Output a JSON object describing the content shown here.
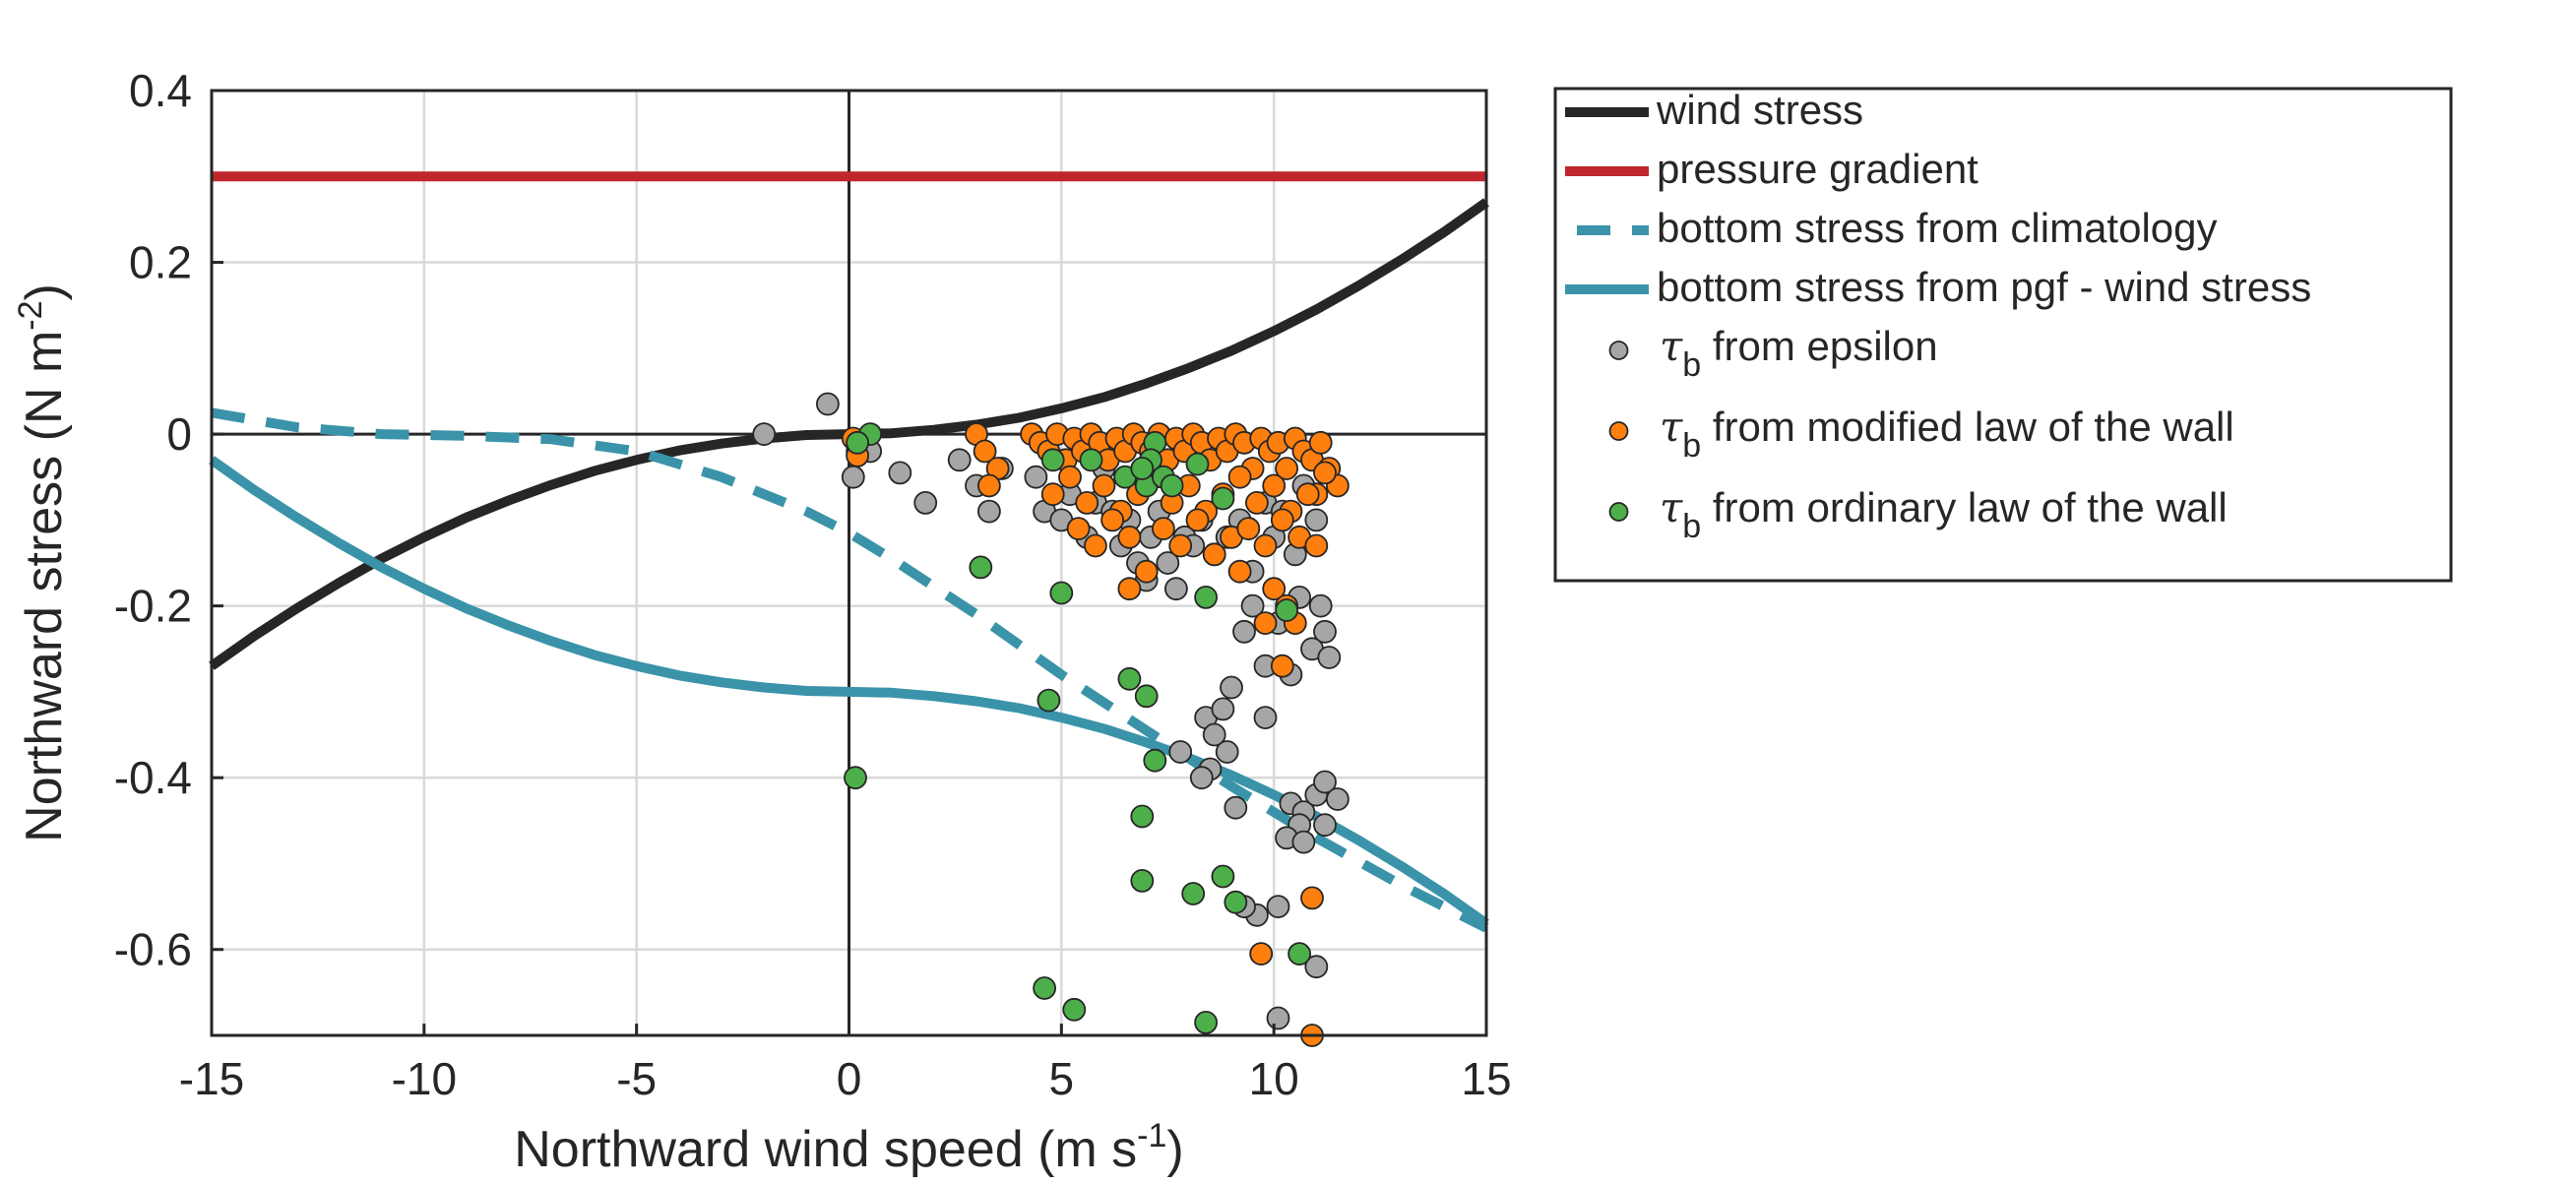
{
  "chart_data": {
    "type": "scatter",
    "xlabel": "Northward wind speed (m s",
    "xlabel_sup": "-1",
    "xlabel_end": ")",
    "ylabel": "Northward stress (N m",
    "ylabel_sup": "-2",
    "ylabel_end": ")",
    "xlim": [
      -15,
      15
    ],
    "ylim": [
      -0.7,
      0.4
    ],
    "xticks": [
      -15,
      -10,
      -5,
      0,
      5,
      10,
      15
    ],
    "xtick_labels": [
      "-15",
      "-10",
      "-5",
      "0",
      "5",
      "10",
      "15"
    ],
    "yticks": [
      -0.6,
      -0.4,
      -0.2,
      0,
      0.2,
      0.4
    ],
    "ytick_labels": [
      "-0.6",
      "-0.4",
      "-0.2",
      "0",
      "0.2",
      "0.4"
    ],
    "grid": true,
    "legend_position": "outside-right",
    "lines": [
      {
        "name": "wind stress",
        "color": "#262626",
        "dash": "solid",
        "x": [
          -15,
          -14,
          -13,
          -12,
          -11,
          -10,
          -9,
          -8,
          -7,
          -6,
          -5,
          -4,
          -3,
          -2,
          -1,
          0,
          1,
          2,
          3,
          4,
          5,
          6,
          7,
          8,
          9,
          10,
          11,
          12,
          13,
          14,
          15
        ],
        "y": [
          -0.27,
          -0.235,
          -0.203,
          -0.173,
          -0.145,
          -0.12,
          -0.097,
          -0.077,
          -0.059,
          -0.043,
          -0.03,
          -0.019,
          -0.011,
          -0.005,
          -0.001,
          0,
          0.001,
          0.005,
          0.011,
          0.019,
          0.03,
          0.043,
          0.059,
          0.077,
          0.097,
          0.12,
          0.145,
          0.173,
          0.203,
          0.235,
          0.27
        ]
      },
      {
        "name": "pressure gradient",
        "color": "#c0272d",
        "dash": "solid",
        "x": [
          -15,
          15
        ],
        "y": [
          0.3,
          0.3
        ]
      },
      {
        "name": "bottom stress from climatology",
        "color": "#3a93a9",
        "dash": "dashed",
        "x": [
          -15,
          -13,
          -11,
          -9,
          -7,
          -5,
          -3,
          -1,
          0,
          1,
          3,
          5,
          7,
          9,
          11,
          13,
          15
        ],
        "y": [
          0.025,
          0.008,
          0,
          -0.002,
          -0.006,
          -0.02,
          -0.05,
          -0.09,
          -0.115,
          -0.145,
          -0.21,
          -0.28,
          -0.345,
          -0.41,
          -0.47,
          -0.525,
          -0.575
        ]
      },
      {
        "name": "bottom stress from pgf - wind stress",
        "color": "#3a93a9",
        "dash": "solid",
        "x": [
          -15,
          -14,
          -13,
          -12,
          -11,
          -10,
          -9,
          -8,
          -7,
          -6,
          -5,
          -4,
          -3,
          -2,
          -1,
          0,
          1,
          2,
          3,
          4,
          5,
          6,
          7,
          8,
          9,
          10,
          11,
          12,
          13,
          14,
          15
        ],
        "y": [
          -0.03,
          -0.065,
          -0.097,
          -0.127,
          -0.155,
          -0.18,
          -0.203,
          -0.223,
          -0.241,
          -0.257,
          -0.27,
          -0.281,
          -0.289,
          -0.295,
          -0.299,
          -0.3,
          -0.301,
          -0.305,
          -0.311,
          -0.319,
          -0.33,
          -0.343,
          -0.359,
          -0.377,
          -0.397,
          -0.42,
          -0.445,
          -0.473,
          -0.503,
          -0.535,
          -0.57
        ]
      }
    ],
    "scatter": [
      {
        "name": "from epsilon",
        "symbol": "τ",
        "symbol_sub": "b",
        "color": "#a6a6a6",
        "points": [
          [
            -0.5,
            0.035
          ],
          [
            -2,
            0
          ],
          [
            0.2,
            -0.02
          ],
          [
            0.1,
            -0.05
          ],
          [
            0.5,
            -0.02
          ],
          [
            1.2,
            -0.045
          ],
          [
            1.8,
            -0.08
          ],
          [
            2.6,
            -0.03
          ],
          [
            3,
            -0.06
          ],
          [
            3.3,
            -0.09
          ],
          [
            3.6,
            -0.04
          ],
          [
            4.4,
            -0.05
          ],
          [
            4.6,
            -0.09
          ],
          [
            5,
            -0.1
          ],
          [
            5.2,
            -0.07
          ],
          [
            5.6,
            -0.12
          ],
          [
            5.8,
            -0.08
          ],
          [
            6,
            -0.04
          ],
          [
            6.2,
            -0.09
          ],
          [
            6.4,
            -0.13
          ],
          [
            6.6,
            -0.1
          ],
          [
            6.8,
            -0.15
          ],
          [
            7,
            -0.17
          ],
          [
            7.1,
            -0.12
          ],
          [
            7.3,
            -0.09
          ],
          [
            7.5,
            -0.15
          ],
          [
            7.7,
            -0.18
          ],
          [
            7.9,
            -0.12
          ],
          [
            8.1,
            -0.13
          ],
          [
            8.3,
            -0.1
          ],
          [
            8.6,
            -0.14
          ],
          [
            8.9,
            -0.12
          ],
          [
            9.2,
            -0.1
          ],
          [
            9.5,
            -0.16
          ],
          [
            9.8,
            -0.08
          ],
          [
            10,
            -0.12
          ],
          [
            10.2,
            -0.09
          ],
          [
            10.5,
            -0.14
          ],
          [
            10.7,
            -0.06
          ],
          [
            11,
            -0.1
          ],
          [
            9.3,
            -0.23
          ],
          [
            9.5,
            -0.2
          ],
          [
            9.8,
            -0.27
          ],
          [
            10.1,
            -0.22
          ],
          [
            10.4,
            -0.28
          ],
          [
            10.6,
            -0.19
          ],
          [
            10.9,
            -0.25
          ],
          [
            11.2,
            -0.23
          ],
          [
            11.1,
            -0.2
          ],
          [
            11.3,
            -0.26
          ],
          [
            9.8,
            -0.33
          ],
          [
            8.4,
            -0.33
          ],
          [
            8.6,
            -0.35
          ],
          [
            8.8,
            -0.32
          ],
          [
            9.0,
            -0.295
          ],
          [
            8.9,
            -0.37
          ],
          [
            7.8,
            -0.37
          ],
          [
            8.5,
            -0.39
          ],
          [
            8.3,
            -0.4
          ],
          [
            9.1,
            -0.435
          ],
          [
            10.4,
            -0.43
          ],
          [
            10.7,
            -0.44
          ],
          [
            11.0,
            -0.42
          ],
          [
            11.2,
            -0.405
          ],
          [
            11.5,
            -0.425
          ],
          [
            10.6,
            -0.455
          ],
          [
            11.2,
            -0.455
          ],
          [
            10.3,
            -0.47
          ],
          [
            10.7,
            -0.475
          ],
          [
            9.6,
            -0.56
          ],
          [
            10.1,
            -0.55
          ],
          [
            9.3,
            -0.55
          ],
          [
            11.0,
            -0.62
          ],
          [
            10.1,
            -0.68
          ]
        ]
      },
      {
        "name": "from modified law of the wall",
        "symbol": "τ",
        "symbol_sub": "b",
        "color": "#ff7f0e",
        "points": [
          [
            0.1,
            -0.005
          ],
          [
            0.2,
            -0.025
          ],
          [
            3,
            0
          ],
          [
            3.2,
            -0.02
          ],
          [
            3.5,
            -0.04
          ],
          [
            3.3,
            -0.06
          ],
          [
            4.3,
            0
          ],
          [
            4.5,
            -0.01
          ],
          [
            4.7,
            -0.02
          ],
          [
            4.9,
            0
          ],
          [
            5.1,
            -0.03
          ],
          [
            5.3,
            -0.005
          ],
          [
            5.5,
            -0.02
          ],
          [
            5.7,
            0
          ],
          [
            5.9,
            -0.01
          ],
          [
            6.1,
            -0.03
          ],
          [
            6.3,
            -0.005
          ],
          [
            6.5,
            -0.02
          ],
          [
            6.7,
            0
          ],
          [
            6.9,
            -0.01
          ],
          [
            7.1,
            -0.02
          ],
          [
            7.3,
            0
          ],
          [
            7.5,
            -0.03
          ],
          [
            7.7,
            -0.005
          ],
          [
            7.9,
            -0.02
          ],
          [
            8.1,
            0
          ],
          [
            8.3,
            -0.01
          ],
          [
            8.5,
            -0.03
          ],
          [
            8.7,
            -0.005
          ],
          [
            8.9,
            -0.02
          ],
          [
            9.1,
            0
          ],
          [
            9.3,
            -0.01
          ],
          [
            9.5,
            -0.04
          ],
          [
            9.7,
            -0.005
          ],
          [
            9.9,
            -0.02
          ],
          [
            10.1,
            -0.01
          ],
          [
            10.3,
            -0.04
          ],
          [
            10.5,
            -0.005
          ],
          [
            10.7,
            -0.02
          ],
          [
            10.9,
            -0.03
          ],
          [
            11.1,
            -0.01
          ],
          [
            11.3,
            -0.04
          ],
          [
            11.5,
            -0.06
          ],
          [
            11.0,
            -0.07
          ],
          [
            11.2,
            -0.045
          ],
          [
            4.8,
            -0.07
          ],
          [
            5.2,
            -0.05
          ],
          [
            5.6,
            -0.08
          ],
          [
            6.0,
            -0.06
          ],
          [
            6.4,
            -0.09
          ],
          [
            6.8,
            -0.07
          ],
          [
            7.2,
            -0.05
          ],
          [
            7.6,
            -0.08
          ],
          [
            8.0,
            -0.06
          ],
          [
            8.4,
            -0.09
          ],
          [
            8.8,
            -0.07
          ],
          [
            9.2,
            -0.05
          ],
          [
            9.6,
            -0.08
          ],
          [
            10.0,
            -0.06
          ],
          [
            10.4,
            -0.09
          ],
          [
            10.8,
            -0.07
          ],
          [
            5.4,
            -0.11
          ],
          [
            5.8,
            -0.13
          ],
          [
            6.2,
            -0.1
          ],
          [
            6.6,
            -0.12
          ],
          [
            7.0,
            -0.16
          ],
          [
            7.4,
            -0.11
          ],
          [
            7.8,
            -0.13
          ],
          [
            8.2,
            -0.1
          ],
          [
            8.6,
            -0.14
          ],
          [
            9.0,
            -0.12
          ],
          [
            9.4,
            -0.11
          ],
          [
            9.8,
            -0.13
          ],
          [
            10.2,
            -0.1
          ],
          [
            10.6,
            -0.12
          ],
          [
            11.0,
            -0.13
          ],
          [
            6.6,
            -0.18
          ],
          [
            9.2,
            -0.16
          ],
          [
            10.0,
            -0.18
          ],
          [
            10.3,
            -0.2
          ],
          [
            9.8,
            -0.22
          ],
          [
            10.5,
            -0.22
          ],
          [
            10.2,
            -0.27
          ],
          [
            10.9,
            -0.54
          ],
          [
            9.7,
            -0.605
          ],
          [
            10.9,
            -0.7
          ]
        ]
      },
      {
        "name": "from ordinary law of the wall",
        "symbol": "τ",
        "symbol_sub": "b",
        "color": "#4daf4a",
        "points": [
          [
            0.5,
            0
          ],
          [
            0.2,
            -0.01
          ],
          [
            0.15,
            -0.4
          ],
          [
            3.1,
            -0.155
          ],
          [
            5,
            -0.185
          ],
          [
            4.8,
            -0.03
          ],
          [
            5.7,
            -0.03
          ],
          [
            6.5,
            -0.05
          ],
          [
            7.0,
            -0.06
          ],
          [
            7.2,
            -0.01
          ],
          [
            7.1,
            -0.03
          ],
          [
            7.4,
            -0.05
          ],
          [
            6.9,
            -0.04
          ],
          [
            7.6,
            -0.06
          ],
          [
            8.2,
            -0.035
          ],
          [
            8.8,
            -0.075
          ],
          [
            8.4,
            -0.19
          ],
          [
            10.3,
            -0.205
          ],
          [
            4.7,
            -0.31
          ],
          [
            6.6,
            -0.285
          ],
          [
            7.0,
            -0.305
          ],
          [
            7.2,
            -0.38
          ],
          [
            6.9,
            -0.445
          ],
          [
            6.9,
            -0.52
          ],
          [
            8.1,
            -0.535
          ],
          [
            8.8,
            -0.515
          ],
          [
            9.1,
            -0.545
          ],
          [
            10.6,
            -0.605
          ],
          [
            4.6,
            -0.645
          ],
          [
            5.3,
            -0.67
          ],
          [
            8.4,
            -0.685
          ]
        ]
      }
    ]
  }
}
